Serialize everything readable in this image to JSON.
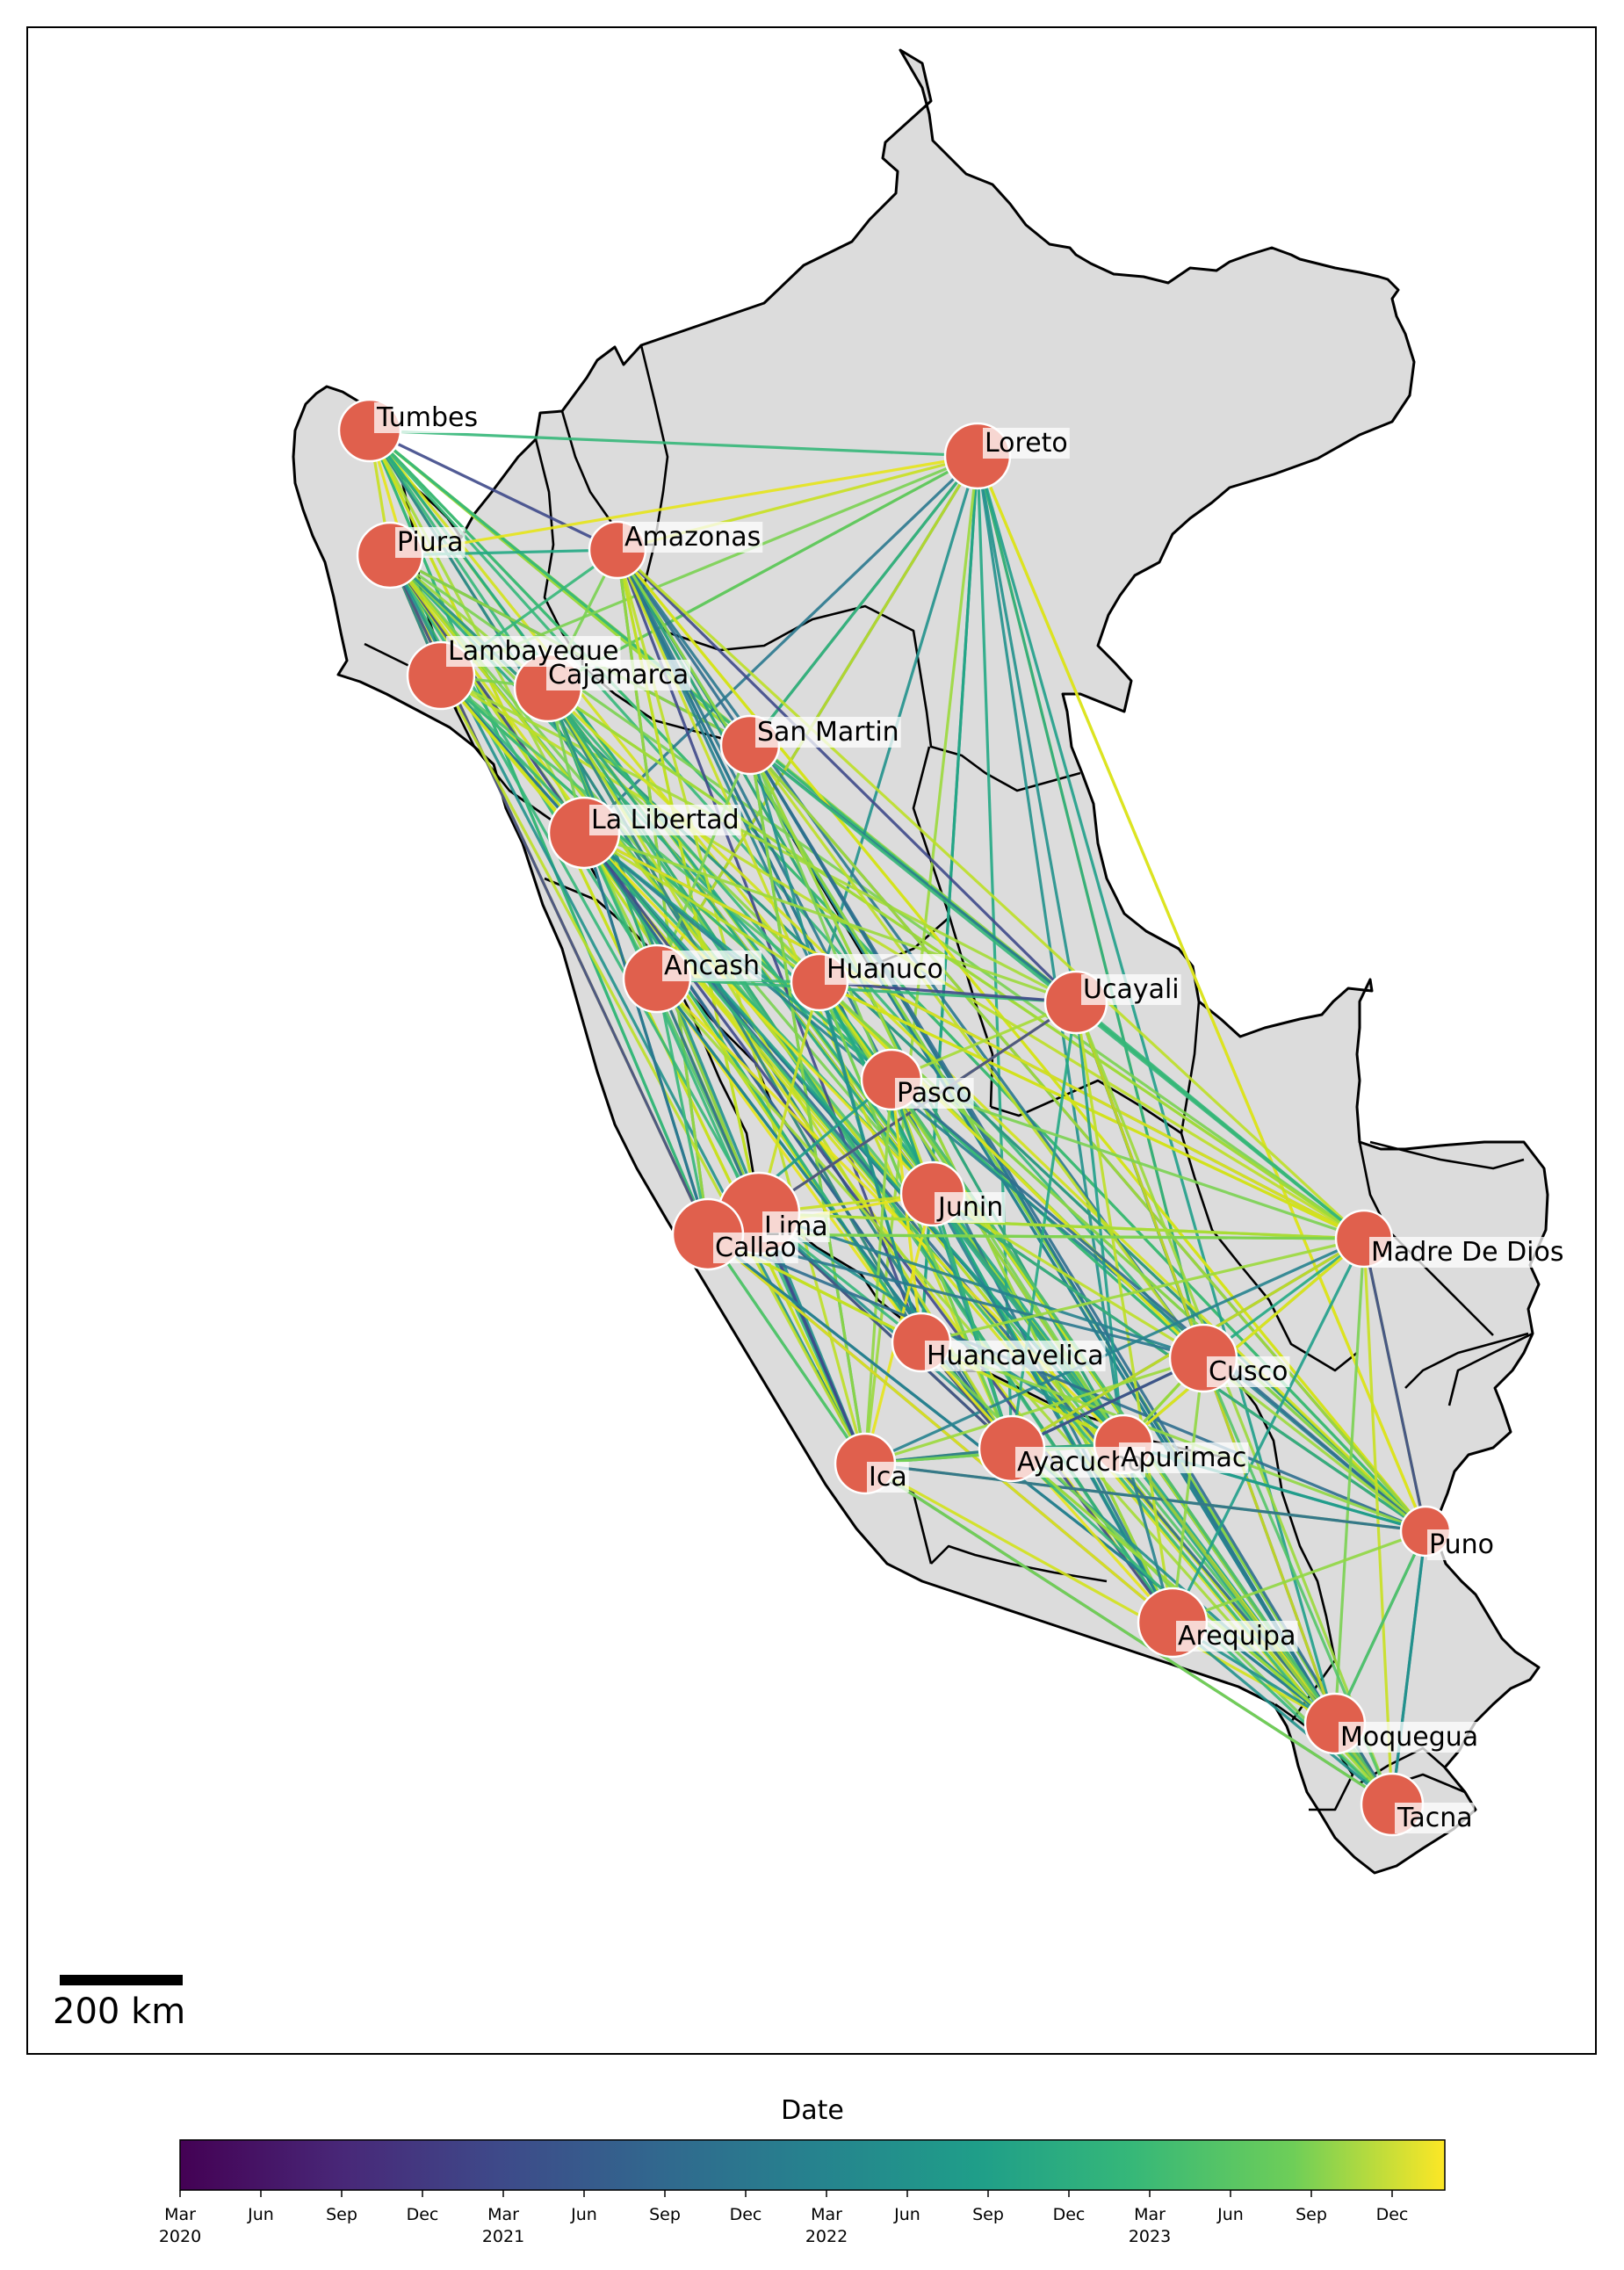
{
  "map": {
    "regions": [
      {
        "name": "Tumbes"
      },
      {
        "name": "Loreto"
      },
      {
        "name": "Piura"
      },
      {
        "name": "Amazonas"
      },
      {
        "name": "Lambayeque"
      },
      {
        "name": "Cajamarca"
      },
      {
        "name": "San Martin"
      },
      {
        "name": "La Libertad"
      },
      {
        "name": "Ancash"
      },
      {
        "name": "Huanuco"
      },
      {
        "name": "Ucayali"
      },
      {
        "name": "Pasco"
      },
      {
        "name": "Junin"
      },
      {
        "name": "Lima"
      },
      {
        "name": "Callao"
      },
      {
        "name": "Madre De Dios"
      },
      {
        "name": "Huancavelica"
      },
      {
        "name": "Cusco"
      },
      {
        "name": "Ica"
      },
      {
        "name": "Ayacucho"
      },
      {
        "name": "Apurimac"
      },
      {
        "name": "Puno"
      },
      {
        "name": "Arequipa"
      },
      {
        "name": "Moquegua"
      },
      {
        "name": "Tacna"
      }
    ],
    "scale_bar_label": "200 km",
    "node_color": "#e0604d",
    "land_color": "#dcdcdc"
  },
  "colorbar": {
    "title": "Date",
    "colormap": "viridis",
    "ticks": [
      {
        "l1": "Mar",
        "l2": "2020"
      },
      {
        "l1": "Jun",
        "l2": ""
      },
      {
        "l1": "Sep",
        "l2": ""
      },
      {
        "l1": "Dec",
        "l2": ""
      },
      {
        "l1": "Mar",
        "l2": "2021"
      },
      {
        "l1": "Jun",
        "l2": ""
      },
      {
        "l1": "Sep",
        "l2": ""
      },
      {
        "l1": "Dec",
        "l2": ""
      },
      {
        "l1": "Mar",
        "l2": "2022"
      },
      {
        "l1": "Jun",
        "l2": ""
      },
      {
        "l1": "Sep",
        "l2": ""
      },
      {
        "l1": "Dec",
        "l2": ""
      },
      {
        "l1": "Mar",
        "l2": "2023"
      },
      {
        "l1": "Jun",
        "l2": ""
      },
      {
        "l1": "Sep",
        "l2": ""
      },
      {
        "l1": "Dec",
        "l2": ""
      }
    ]
  }
}
